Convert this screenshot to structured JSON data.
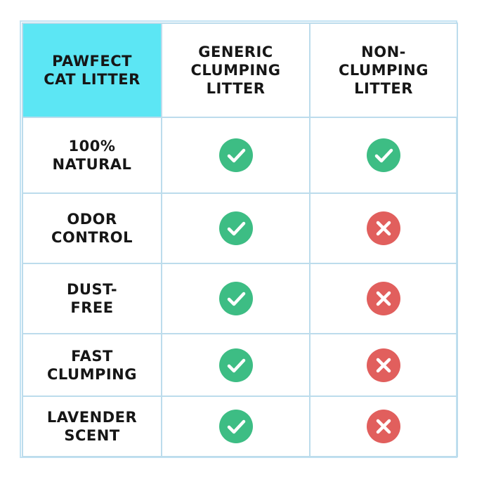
{
  "headers": [
    "PAWFECT\nCAT LITTER",
    "GENERIC\nCLUMPING\nLITTER",
    "NON-\nCLUMPING\nLITTER"
  ],
  "rows": [
    {
      "feature": "100%\nNATURAL",
      "generic": "check-icon",
      "non_clumping": "check-icon"
    },
    {
      "feature": "ODOR\nCONTROL",
      "generic": "check-icon",
      "non_clumping": "cross-icon"
    },
    {
      "feature": "DUST-\nFREE",
      "generic": "check-icon",
      "non_clumping": "cross-icon"
    },
    {
      "feature": "FAST\nCLUMPING",
      "generic": "check-icon",
      "non_clumping": "cross-icon"
    },
    {
      "feature": "LAVENDER\nSCENT",
      "generic": "check-icon",
      "non_clumping": "cross-icon"
    }
  ],
  "colors": {
    "brand_header": "#5ce6f4",
    "check": "#3dbd84",
    "cross": "#e15f5d",
    "border": "#bcdcec"
  }
}
